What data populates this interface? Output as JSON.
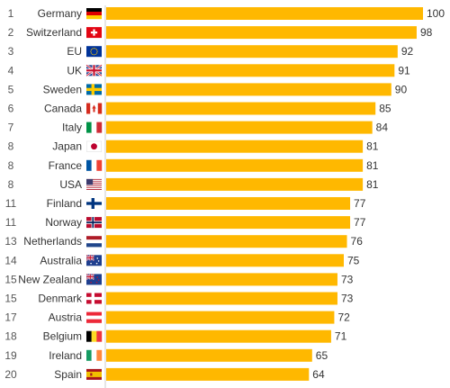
{
  "colors": {
    "bar": "#FFB800",
    "axis": "#cccccc",
    "text": "#333333"
  },
  "chart_data": {
    "type": "bar",
    "orientation": "horizontal",
    "xlim": [
      0,
      100
    ],
    "grid": false,
    "ranks": [
      "1",
      "2",
      "3",
      "4",
      "5",
      "6",
      "7",
      "8",
      "8",
      "8",
      "11",
      "11",
      "13",
      "14",
      "15",
      "15",
      "17",
      "18",
      "19",
      "20"
    ],
    "categories": [
      "Germany",
      "Switzerland",
      "EU",
      "UK",
      "Sweden",
      "Canada",
      "Italy",
      "Japan",
      "France",
      "USA",
      "Finland",
      "Norway",
      "Netherlands",
      "Australia",
      "New Zealand",
      "Denmark",
      "Austria",
      "Belgium",
      "Ireland",
      "Spain"
    ],
    "flags": [
      "de",
      "ch",
      "eu",
      "gb",
      "se",
      "ca",
      "it",
      "jp",
      "fr",
      "us",
      "fi",
      "no",
      "nl",
      "au",
      "nz",
      "dk",
      "at",
      "be",
      "ie",
      "es"
    ],
    "values": [
      100,
      98,
      92,
      91,
      90,
      85,
      84,
      81,
      81,
      81,
      77,
      77,
      76,
      75,
      73,
      73,
      72,
      71,
      65,
      64
    ]
  }
}
